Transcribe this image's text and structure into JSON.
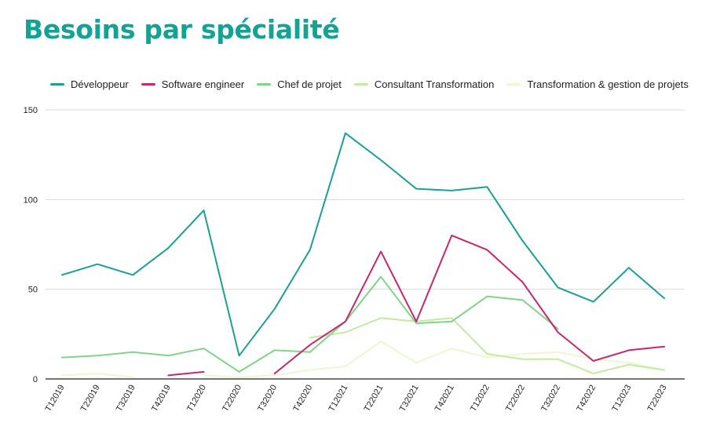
{
  "title": "Besoins par spécialité",
  "colors": {
    "title": "#12a394",
    "axis": "#222222",
    "grid": "#d9d9d9"
  },
  "chart_data": {
    "type": "line",
    "title": "Besoins par spécialité",
    "xlabel": "",
    "ylabel": "",
    "ylim": [
      0,
      150
    ],
    "yticks": [
      0,
      50,
      100,
      150
    ],
    "grid": true,
    "legend_position": "top",
    "categories": [
      "T12019",
      "T22019",
      "T32019",
      "T42019",
      "T12020",
      "T22020",
      "T32020",
      "T42020",
      "T12021",
      "T22021",
      "T32021",
      "T42021",
      "T12022",
      "T22022",
      "T32022",
      "T42022",
      "T12023",
      "T22023"
    ],
    "series": [
      {
        "name": "Développeur",
        "color": "#1aa192",
        "values": [
          58,
          64,
          58,
          73,
          94,
          13,
          39,
          72,
          137,
          122,
          106,
          105,
          107,
          77,
          51,
          43,
          62,
          45
        ]
      },
      {
        "name": "Software engineer",
        "color": "#c9276a",
        "values": [
          null,
          null,
          null,
          2,
          4,
          null,
          3,
          19,
          32,
          71,
          32,
          80,
          72,
          54,
          26,
          10,
          16,
          18
        ]
      },
      {
        "name": "Chef de projet",
        "color": "#7fd48a",
        "values": [
          12,
          13,
          15,
          13,
          17,
          4,
          16,
          15,
          32,
          57,
          31,
          32,
          46,
          44,
          28,
          null,
          null,
          null
        ]
      },
      {
        "name": "Consultant Transformation",
        "color": "#c2eb9f",
        "values": [
          null,
          null,
          null,
          null,
          null,
          null,
          null,
          23,
          26,
          34,
          32,
          34,
          14,
          11,
          11,
          3,
          8,
          5
        ]
      },
      {
        "name": "Transformation & gestion de projets",
        "color": "#eaf9cf",
        "values": [
          2,
          3,
          1,
          null,
          2,
          1,
          2,
          5,
          7,
          21,
          9,
          17,
          12,
          14,
          15,
          11,
          9,
          5
        ]
      }
    ]
  }
}
